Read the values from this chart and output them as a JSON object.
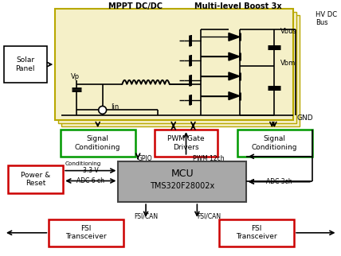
{
  "title_mppt": "MPPT DC/DC",
  "title_multilevel": "Multi-level Boost 3x",
  "hv_dc_bus": "HV DC\nBus",
  "gnd": "GND",
  "vbus": "Vbus",
  "vbm": "Vbm",
  "vp": "Vp",
  "iin": "Iin",
  "solar_panel": "Solar\nPanel",
  "signal_cond_left": "Signal\nConditioning",
  "signal_cond_right": "Signal\nConditioning",
  "pwm_gate": "PWM Gate\nDrivers",
  "power_reset": "Power &\nReset",
  "mcu_line1": "MCU",
  "mcu_line2": "TMS320F28002x",
  "fsi_left": "FSI\nTransceiver",
  "fsi_right": "FSI\nTransceiver",
  "conditioning_label": "Conditioning",
  "v33_label": "3.3 V",
  "adc6ch_label": "ADC 6 ch",
  "gpio_label": "GPIO",
  "pwm12ch_label": "PWM 12ch",
  "adc3ch_label": "ADC 3ch",
  "fsican_left": "FSI/CAN",
  "fsican_right": "FSI/CAN",
  "bg_color": "#ffffff",
  "circuit_bg": "#f5f0c8",
  "circuit_border": "#b8a800",
  "green_border": "#009900",
  "red_border": "#cc0000",
  "mcu_fill": "#a8a8a8",
  "mcu_border": "#444444",
  "solar_fill": "#ffffff",
  "solar_border": "#000000",
  "black": "#000000"
}
